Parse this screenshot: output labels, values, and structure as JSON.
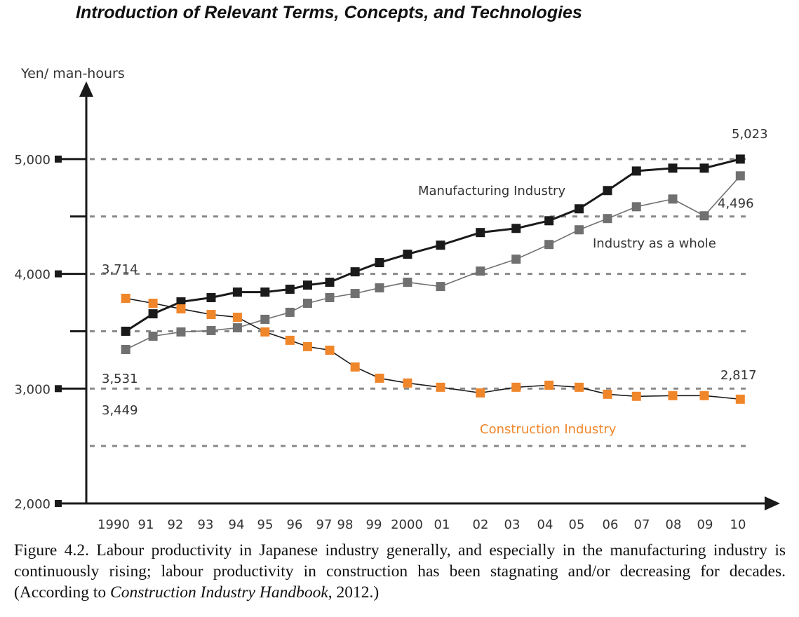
{
  "header": {
    "title": "Introduction of Relevant Terms, Concepts, and Technologies"
  },
  "caption": {
    "prefix": "Figure 4.2.  Labour productivity in Japanese industry generally, and especially in the manufacturing industry is continuously rising; labour productivity in construction has been stagnating and/or decreasing for decades. (According to ",
    "source_italic": "Construction Industry Handbook",
    "suffix": ", 2012.)"
  },
  "chart_data": {
    "type": "line",
    "title": "",
    "ylabel": "Yen/ man-hours",
    "xlabel": "",
    "ylim": [
      2000,
      5000
    ],
    "yticks": [
      {
        "value": 2000,
        "label": "2,000"
      },
      {
        "value": 3000,
        "label": "3,000"
      },
      {
        "value": 4000,
        "label": "4,000"
      },
      {
        "value": 5000,
        "label": "5,000"
      }
    ],
    "minor_yticks": [
      3500,
      4500
    ],
    "gridlines": [
      2500,
      3000,
      3500,
      4000,
      4500,
      5000
    ],
    "grid": "dashed horizontal",
    "xticks": [
      {
        "value": 1990,
        "label": "1990"
      },
      {
        "value": 1991,
        "label": "91"
      },
      {
        "value": 1992,
        "label": "92"
      },
      {
        "value": 1993,
        "label": "93"
      },
      {
        "value": 1994,
        "label": "94"
      },
      {
        "value": 1995,
        "label": "95"
      },
      {
        "value": 1996,
        "label": "96"
      },
      {
        "value": 1997,
        "label": "97"
      },
      {
        "value": 1998,
        "label": "98"
      },
      {
        "value": 1999,
        "label": "99"
      },
      {
        "value": 2000,
        "label": "2000"
      },
      {
        "value": 2001,
        "label": "01"
      },
      {
        "value": 2002,
        "label": "02"
      },
      {
        "value": 2003,
        "label": "03"
      },
      {
        "value": 2004,
        "label": "04"
      },
      {
        "value": 2005,
        "label": "05"
      },
      {
        "value": 2006,
        "label": "06"
      },
      {
        "value": 2007,
        "label": "07"
      },
      {
        "value": 2008,
        "label": "08"
      },
      {
        "value": 2009,
        "label": "09"
      },
      {
        "value": 2010,
        "label": "10"
      }
    ],
    "x": [
      1990.2,
      1991.05,
      1992,
      1993,
      1993.85,
      1994.8,
      1995.65,
      1996.25,
      1997,
      1998.15,
      1999,
      1999.85,
      2000.8,
      2001.85,
      2002.95,
      2003.95,
      2004.9,
      2005.75,
      2006.65,
      2007.8,
      2008.8,
      2009.9
    ],
    "series": [
      {
        "name": "Manufacturing Industry",
        "color": "#1a1a1a",
        "values": [
          3500,
          3652,
          3756,
          3793,
          3841,
          3841,
          3866,
          3902,
          3927,
          4018,
          4098,
          4171,
          4250,
          4360,
          4396,
          4463,
          4567,
          4726,
          4896,
          4921,
          4921,
          5000
        ]
      },
      {
        "name": "Industry as a whole",
        "color": "#707070",
        "values": [
          3341,
          3457,
          3494,
          3506,
          3530,
          3604,
          3665,
          3744,
          3793,
          3829,
          3878,
          3927,
          3890,
          4024,
          4128,
          4256,
          4384,
          4482,
          4585,
          4652,
          4506,
          4854
        ]
      },
      {
        "name": "Construction Industry",
        "color": "#f0862a",
        "values": [
          3787,
          3744,
          3695,
          3646,
          3622,
          3494,
          3421,
          3366,
          3335,
          3189,
          3091,
          3049,
          3012,
          2963,
          3012,
          3030,
          3012,
          2951,
          2933,
          2939,
          2939,
          2908
        ]
      }
    ],
    "annotations": [
      {
        "text": "3,714"
      },
      {
        "text": "3,531"
      },
      {
        "text": "3,449"
      },
      {
        "text": "5,023"
      },
      {
        "text": "4,496"
      },
      {
        "text": "2,817"
      }
    ],
    "legend": "inline labels near lines"
  }
}
